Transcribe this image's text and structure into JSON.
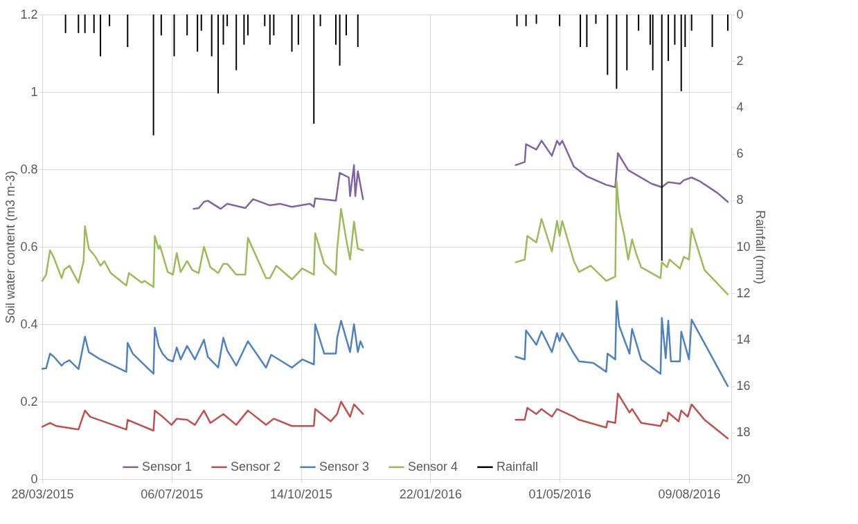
{
  "chart_data": {
    "type": "line",
    "ylabel": "Soil water content (m3 m-3)",
    "y2label": "Rainfall (mm)",
    "xlim": [
      "2015-03-28",
      "2016-09-08"
    ],
    "xticks": [
      {
        "value": "2015-03-28",
        "label": "28/03/2015"
      },
      {
        "value": "2015-07-06",
        "label": "06/07/2015"
      },
      {
        "value": "2015-10-14",
        "label": "14/10/2015"
      },
      {
        "value": "2016-01-22",
        "label": "22/01/2016"
      },
      {
        "value": "2016-05-01",
        "label": "01/05/2016"
      },
      {
        "value": "2016-08-09",
        "label": "09/08/2016"
      }
    ],
    "ylim": [
      0,
      1.2
    ],
    "yticks": [
      0,
      0.2,
      0.4,
      0.6,
      0.8,
      1,
      1.2
    ],
    "y2lim": [
      20,
      0
    ],
    "y2ticks": [
      0,
      2,
      4,
      6,
      8,
      10,
      12,
      14,
      16,
      18,
      20
    ],
    "grid": true,
    "legend": "bottom",
    "series": [
      {
        "name": "Sensor 1",
        "color": "#8064a2",
        "x": [
          "2015-07-23",
          "2015-07-27",
          "2015-07-31",
          "2015-08-03",
          "2015-08-13",
          "2015-08-18",
          "2015-09-01",
          "2015-09-07",
          "2015-09-20",
          "2015-09-28",
          "2015-10-07",
          "2015-10-21",
          "2015-10-24",
          "2015-10-25",
          "2015-11-10",
          "2015-11-13",
          "2015-11-20",
          "2015-11-21",
          "2015-11-24",
          "2015-11-25",
          "2015-11-27",
          "2015-12-01",
          "2016-01-22",
          "2016-03-28",
          "2016-04-04",
          "2016-04-05",
          "2016-04-13",
          "2016-04-17",
          "2016-04-25",
          "2016-04-29",
          "2016-05-01",
          "2016-05-03",
          "2016-05-12",
          "2016-05-22",
          "2016-06-06",
          "2016-06-13",
          "2016-06-15",
          "2016-06-23",
          "2016-07-11",
          "2016-07-19",
          "2016-07-24",
          "2016-08-02",
          "2016-08-05",
          "2016-08-11",
          "2016-08-17",
          "2016-08-31",
          "2016-09-08"
        ],
        "values": [
          0.698,
          0.7,
          0.716,
          0.719,
          0.698,
          0.711,
          0.7,
          0.723,
          0.707,
          0.711,
          0.703,
          0.711,
          0.703,
          0.725,
          0.719,
          0.791,
          0.779,
          0.731,
          0.811,
          0.731,
          0.795,
          0.723,
          null,
          0.811,
          0.819,
          0.865,
          0.851,
          0.874,
          0.835,
          0.874,
          0.863,
          0.874,
          0.807,
          0.782,
          0.76,
          0.754,
          0.842,
          0.798,
          0.763,
          0.754,
          0.767,
          0.763,
          0.772,
          0.779,
          0.77,
          0.739,
          0.716
        ]
      },
      {
        "name": "Sensor 2",
        "color": "#c0504d",
        "x": [
          "2015-03-28",
          "2015-04-03",
          "2015-04-08",
          "2015-04-25",
          "2015-04-30",
          "2015-05-04",
          "2015-06-01",
          "2015-06-02",
          "2015-06-22",
          "2015-06-23",
          "2015-06-29",
          "2015-07-06",
          "2015-07-10",
          "2015-07-18",
          "2015-07-24",
          "2015-07-31",
          "2015-08-05",
          "2015-08-15",
          "2015-08-25",
          "2015-09-03",
          "2015-09-17",
          "2015-09-23",
          "2015-10-07",
          "2015-10-24",
          "2015-10-25",
          "2015-11-06",
          "2015-11-11",
          "2015-11-14",
          "2015-11-21",
          "2015-11-24",
          "2015-12-01",
          "2016-01-22",
          "2016-03-28",
          "2016-04-04",
          "2016-04-06",
          "2016-04-13",
          "2016-04-17",
          "2016-04-25",
          "2016-04-29",
          "2016-05-12",
          "2016-05-16",
          "2016-06-06",
          "2016-06-07",
          "2016-06-13",
          "2016-06-15",
          "2016-06-24",
          "2016-06-26",
          "2016-07-03",
          "2016-07-18",
          "2016-07-20",
          "2016-07-23",
          "2016-07-24",
          "2016-08-01",
          "2016-08-03",
          "2016-08-08",
          "2016-08-11",
          "2016-08-21",
          "2016-09-08"
        ],
        "values": [
          0.135,
          0.145,
          0.137,
          0.128,
          0.177,
          0.161,
          0.128,
          0.153,
          0.125,
          0.177,
          0.161,
          0.14,
          0.156,
          0.153,
          0.14,
          0.177,
          0.145,
          0.168,
          0.14,
          0.177,
          0.14,
          0.156,
          0.137,
          0.137,
          0.181,
          0.149,
          0.168,
          0.2,
          0.161,
          0.193,
          0.168,
          null,
          0.153,
          0.153,
          0.184,
          0.168,
          0.181,
          0.161,
          0.181,
          0.161,
          0.153,
          0.133,
          0.149,
          0.145,
          0.221,
          0.172,
          0.181,
          0.145,
          0.137,
          0.153,
          0.149,
          0.172,
          0.149,
          0.177,
          0.161,
          0.193,
          0.153,
          0.105
        ]
      },
      {
        "name": "Sensor 3",
        "color": "#4f81bd",
        "x": [
          "2015-03-28",
          "2015-03-31",
          "2015-04-03",
          "2015-04-06",
          "2015-04-12",
          "2015-04-14",
          "2015-04-18",
          "2015-04-25",
          "2015-04-27",
          "2015-04-30",
          "2015-05-03",
          "2015-05-12",
          "2015-06-01",
          "2015-06-02",
          "2015-06-06",
          "2015-06-22",
          "2015-06-23",
          "2015-06-26",
          "2015-06-29",
          "2015-07-03",
          "2015-07-07",
          "2015-07-10",
          "2015-07-13",
          "2015-07-18",
          "2015-07-24",
          "2015-07-31",
          "2015-08-03",
          "2015-08-11",
          "2015-08-15",
          "2015-08-18",
          "2015-08-25",
          "2015-09-03",
          "2015-09-17",
          "2015-09-21",
          "2015-10-07",
          "2015-10-15",
          "2015-10-24",
          "2015-10-25",
          "2015-11-01",
          "2015-11-10",
          "2015-11-11",
          "2015-11-14",
          "2015-11-21",
          "2015-11-24",
          "2015-11-27",
          "2015-11-29",
          "2015-12-01",
          "2016-01-22",
          "2016-03-28",
          "2016-04-04",
          "2016-04-05",
          "2016-04-13",
          "2016-04-17",
          "2016-04-25",
          "2016-04-29",
          "2016-05-01",
          "2016-05-03",
          "2016-05-12",
          "2016-05-16",
          "2016-05-27",
          "2016-06-06",
          "2016-06-07",
          "2016-06-13",
          "2016-06-14",
          "2016-06-16",
          "2016-06-24",
          "2016-06-26",
          "2016-07-03",
          "2016-07-18",
          "2016-07-19",
          "2016-07-22",
          "2016-07-24",
          "2016-07-26",
          "2016-08-02",
          "2016-08-03",
          "2016-08-09",
          "2016-08-11",
          "2016-09-08"
        ],
        "values": [
          0.285,
          0.286,
          0.324,
          0.316,
          0.293,
          0.3,
          0.307,
          0.284,
          0.316,
          0.368,
          0.328,
          0.309,
          0.277,
          0.352,
          0.324,
          0.272,
          0.391,
          0.344,
          0.324,
          0.309,
          0.304,
          0.34,
          0.309,
          0.344,
          0.309,
          0.36,
          0.316,
          0.288,
          0.365,
          0.332,
          0.293,
          0.356,
          0.288,
          0.321,
          0.288,
          0.309,
          0.296,
          0.4,
          0.324,
          0.324,
          0.365,
          0.409,
          0.328,
          0.4,
          0.328,
          0.356,
          0.34,
          null,
          0.316,
          0.309,
          0.384,
          0.347,
          0.382,
          0.328,
          0.377,
          0.356,
          0.377,
          0.324,
          0.304,
          0.3,
          0.277,
          0.324,
          0.309,
          0.46,
          0.396,
          0.324,
          0.388,
          0.309,
          0.272,
          0.416,
          0.312,
          0.409,
          0.304,
          0.304,
          0.381,
          0.309,
          0.412,
          0.24
        ]
      },
      {
        "name": "Sensor 4",
        "color": "#9bbb59",
        "x": [
          "2015-03-28",
          "2015-03-31",
          "2015-04-03",
          "2015-04-06",
          "2015-04-12",
          "2015-04-14",
          "2015-04-18",
          "2015-04-25",
          "2015-04-29",
          "2015-04-30",
          "2015-05-03",
          "2015-05-08",
          "2015-05-12",
          "2015-05-15",
          "2015-05-20",
          "2015-06-01",
          "2015-06-03",
          "2015-06-13",
          "2015-06-15",
          "2015-06-22",
          "2015-06-23",
          "2015-06-26",
          "2015-06-27",
          "2015-07-03",
          "2015-07-07",
          "2015-07-10",
          "2015-07-13",
          "2015-07-18",
          "2015-07-22",
          "2015-07-27",
          "2015-07-31",
          "2015-08-05",
          "2015-08-11",
          "2015-08-15",
          "2015-08-18",
          "2015-08-25",
          "2015-09-01",
          "2015-09-03",
          "2015-09-17",
          "2015-09-20",
          "2015-09-25",
          "2015-10-07",
          "2015-10-15",
          "2015-10-24",
          "2015-10-25",
          "2015-11-01",
          "2015-11-10",
          "2015-11-11",
          "2015-11-14",
          "2015-11-18",
          "2015-11-21",
          "2015-11-24",
          "2015-11-27",
          "2015-12-01",
          "2016-01-22",
          "2016-03-28",
          "2016-04-04",
          "2016-04-06",
          "2016-04-13",
          "2016-04-17",
          "2016-04-25",
          "2016-04-29",
          "2016-05-01",
          "2016-05-03",
          "2016-05-12",
          "2016-05-16",
          "2016-05-25",
          "2016-06-06",
          "2016-06-13",
          "2016-06-14",
          "2016-06-16",
          "2016-06-20",
          "2016-06-23",
          "2016-06-26",
          "2016-06-29",
          "2016-07-03",
          "2016-07-18",
          "2016-07-19",
          "2016-07-23",
          "2016-07-25",
          "2016-08-02",
          "2016-08-05",
          "2016-08-09",
          "2016-08-11",
          "2016-08-21",
          "2016-09-08"
        ],
        "values": [
          0.512,
          0.528,
          0.591,
          0.572,
          0.519,
          0.541,
          0.551,
          0.507,
          0.563,
          0.653,
          0.595,
          0.575,
          0.551,
          0.563,
          0.532,
          0.5,
          0.532,
          0.507,
          0.512,
          0.496,
          0.628,
          0.595,
          0.603,
          0.535,
          0.528,
          0.584,
          0.535,
          0.563,
          0.54,
          0.532,
          0.6,
          0.547,
          0.532,
          0.556,
          0.556,
          0.528,
          0.528,
          0.623,
          0.519,
          0.519,
          0.551,
          0.516,
          0.544,
          0.528,
          0.635,
          0.556,
          0.528,
          0.595,
          0.698,
          0.619,
          0.567,
          0.665,
          0.595,
          0.591,
          null,
          0.56,
          0.567,
          0.628,
          0.611,
          0.672,
          0.588,
          0.667,
          0.628,
          0.667,
          0.563,
          0.535,
          0.551,
          0.512,
          0.523,
          0.77,
          0.691,
          0.628,
          0.567,
          0.619,
          0.584,
          0.547,
          0.519,
          0.56,
          0.547,
          0.567,
          0.544,
          0.574,
          0.567,
          0.647,
          0.54,
          0.477
        ]
      },
      {
        "name": "Rainfall",
        "color": "#000000",
        "type": "bar",
        "axis": "y2",
        "x": [
          "2015-04-15",
          "2015-04-25",
          "2015-04-30",
          "2015-05-07",
          "2015-05-12",
          "2015-05-19",
          "2015-06-02",
          "2015-06-22",
          "2015-06-28",
          "2015-07-08",
          "2015-07-18",
          "2015-07-26",
          "2015-07-29",
          "2015-08-06",
          "2015-08-11",
          "2015-08-15",
          "2015-08-18",
          "2015-08-25",
          "2015-08-31",
          "2015-09-03",
          "2015-09-16",
          "2015-09-20",
          "2015-09-23",
          "2015-10-07",
          "2015-10-12",
          "2015-10-24",
          "2015-10-29",
          "2015-11-10",
          "2015-11-13",
          "2015-11-18",
          "2015-11-27",
          "2016-03-29",
          "2016-04-05",
          "2016-04-13",
          "2016-05-01",
          "2016-05-17",
          "2016-05-22",
          "2016-05-29",
          "2016-06-07",
          "2016-06-14",
          "2016-06-22",
          "2016-07-01",
          "2016-07-10",
          "2016-07-12",
          "2016-07-19",
          "2016-07-24",
          "2016-07-29",
          "2016-08-03",
          "2016-08-06",
          "2016-08-11",
          "2016-08-27",
          "2016-09-08"
        ],
        "values": [
          0.8,
          0.8,
          0.8,
          0.8,
          1.8,
          0.5,
          1.4,
          5.2,
          0.9,
          1.8,
          0.9,
          1.6,
          0.7,
          1.8,
          3.4,
          1.3,
          0.5,
          2.4,
          1.3,
          0.9,
          0.5,
          1.3,
          0.9,
          1.6,
          1.3,
          4.7,
          0.5,
          1.3,
          2.2,
          0.9,
          1.4,
          0.5,
          0.5,
          0.4,
          0.5,
          1.4,
          1.4,
          0.4,
          2.6,
          3.2,
          2.4,
          0.7,
          1.3,
          2.4,
          10.6,
          2.0,
          1.3,
          3.3,
          1.4,
          0.7,
          1.4,
          0.7
        ]
      }
    ]
  }
}
